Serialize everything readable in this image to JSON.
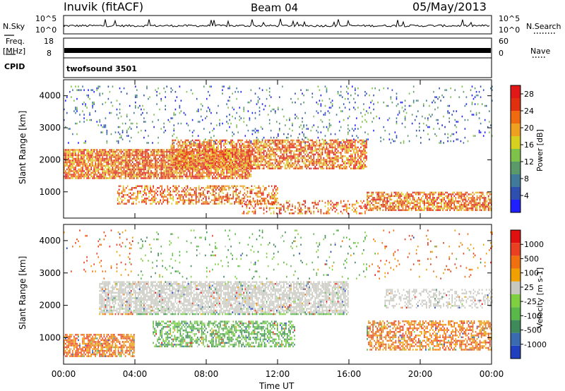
{
  "header": {
    "site": "Inuvik (fitACF)",
    "beam": "Beam 04",
    "date": "05/May/2013"
  },
  "strips": {
    "nsky": {
      "label": "N.Sky",
      "ticks": [
        "10^5",
        "10^0"
      ]
    },
    "nsearch": {
      "label": "N.Search",
      "ticks": [
        "10^5",
        "10^0"
      ]
    },
    "freq": {
      "label": "Freq.",
      "unit": "[MHz]",
      "ticks": [
        "18",
        "8"
      ]
    },
    "nave": {
      "label": "Nave",
      "ticks": [
        "60",
        "0"
      ]
    },
    "cpid": {
      "label": "CPID",
      "value": "twofsound 3501"
    }
  },
  "chart_data": [
    {
      "type": "heatmap",
      "title": "",
      "xlabel": "Time UT",
      "ylabel": "Slant Range [km]",
      "x_ticks": [
        "00:00",
        "04:00",
        "08:00",
        "12:00",
        "16:00",
        "20:00",
        "00:00"
      ],
      "y_ticks": [
        1000,
        2000,
        3000,
        4000
      ],
      "xlim": [
        "00:00",
        "24:00"
      ],
      "ylim": [
        180,
        4500
      ],
      "colorbar": {
        "label": "Power [dB]",
        "ticks": [
          4,
          8,
          12,
          16,
          20,
          24,
          28
        ],
        "range": [
          0,
          30
        ],
        "colors": [
          "#1f1fff",
          "#2e4fb0",
          "#3f7a9a",
          "#5a9a6a",
          "#7ec24a",
          "#d8d020",
          "#f0a020",
          "#f06a10",
          "#e03010",
          "#e01818"
        ]
      }
    },
    {
      "type": "heatmap",
      "title": "",
      "xlabel": "Time UT",
      "ylabel": "Slant Range [km]",
      "x_ticks": [
        "00:00",
        "04:00",
        "08:00",
        "12:00",
        "16:00",
        "20:00",
        "00:00"
      ],
      "y_ticks": [
        1000,
        2000,
        3000,
        4000
      ],
      "xlim": [
        "00:00",
        "24:00"
      ],
      "ylim": [
        180,
        4500
      ],
      "colorbar": {
        "label": "Velocity [m s-1]",
        "ticks": [
          1000,
          500,
          100,
          25,
          -25,
          -100,
          -500,
          -1000
        ],
        "colors": [
          "#2040c0",
          "#3a6ab0",
          "#3f8a5a",
          "#5ab84a",
          "#7ed040",
          "#c8c8c0",
          "#f0a000",
          "#f07010",
          "#e84020",
          "#e01010"
        ]
      }
    }
  ]
}
